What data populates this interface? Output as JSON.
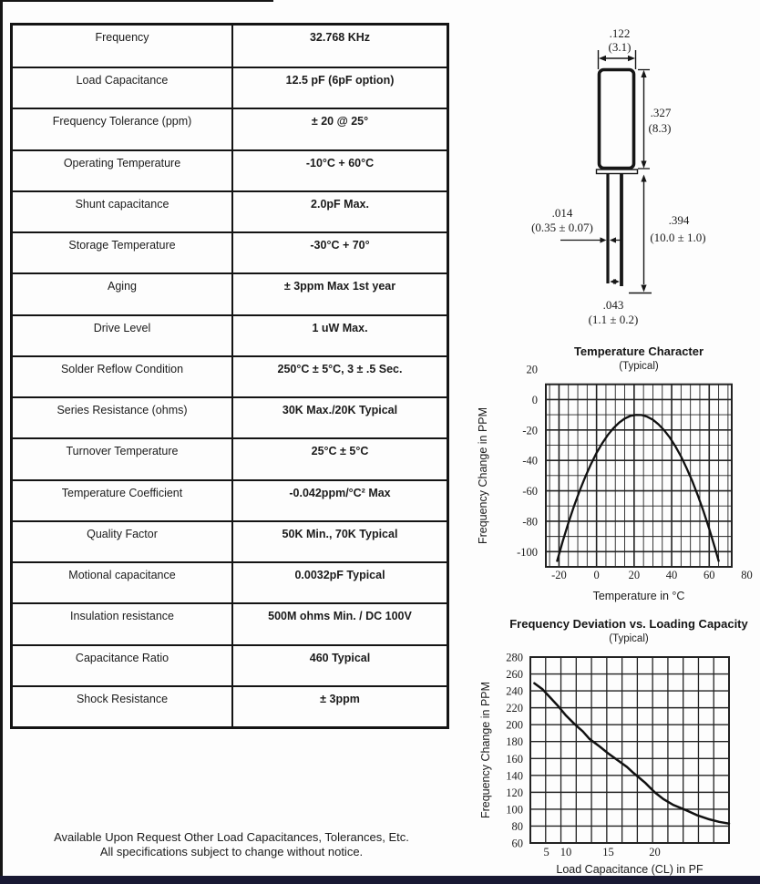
{
  "spec_table": {
    "rows": [
      {
        "param": "Frequency",
        "value": "32.768 KHz"
      },
      {
        "param": "Load Capacitance",
        "value": "12.5 pF  (6pF option)"
      },
      {
        "param": "Frequency Tolerance (ppm)",
        "value": "± 20 @ 25°"
      },
      {
        "param": "Operating Temperature",
        "value": "-10°C + 60°C"
      },
      {
        "param": "Shunt capacitance",
        "value": "2.0pF Max."
      },
      {
        "param": "Storage Temperature",
        "value": "-30°C + 70°"
      },
      {
        "param": "Aging",
        "value": "± 3ppm Max 1st year"
      },
      {
        "param": "Drive Level",
        "value": "1 uW Max."
      },
      {
        "param": "Solder Reflow Condition",
        "value": "250°C ± 5°C, 3 ± .5 Sec."
      },
      {
        "param": "Series Resistance (ohms)",
        "value": "30K Max./20K Typical"
      },
      {
        "param": "Turnover Temperature",
        "value": "25°C ± 5°C"
      },
      {
        "param": "Temperature Coefficient",
        "value": "-0.042ppm/°C² Max"
      },
      {
        "param": "Quality Factor",
        "value": "50K Min., 70K Typical"
      },
      {
        "param": "Motional capacitance",
        "value": "0.0032pF Typical"
      },
      {
        "param": "Insulation resistance",
        "value": "500M ohms Min. / DC 100V"
      },
      {
        "param": "Capacitance Ratio",
        "value": "460 Typical"
      },
      {
        "param": "Shock Resistance",
        "value": "± 3ppm"
      }
    ]
  },
  "footer": {
    "line1": "Available Upon Request  Other Load Capacitances, Tolerances, Etc.",
    "line2": "All specifications subject to change without notice."
  },
  "drawing": {
    "dims": {
      "body_width_in": ".122",
      "body_width_mm": "(3.1)",
      "body_height_in": ".327",
      "body_height_mm": "(8.3)",
      "lead_dia_in": ".014",
      "lead_dia_mm": "(0.35 ± 0.07)",
      "lead_len_in": ".394",
      "lead_len_mm": "(10.0 ± 1.0)",
      "lead_space_in": ".043",
      "lead_space_mm": "(1.1 ± 0.2)"
    }
  },
  "chart_data": [
    {
      "type": "line",
      "title": "Temperature Character",
      "subtitle": "(Typical)",
      "xlabel": "Temperature in °C",
      "ylabel": "Frequency Change in PPM",
      "xlim": [
        -27,
        72
      ],
      "ylim": [
        -110,
        10
      ],
      "x_ticks": [
        -20,
        0,
        20,
        40,
        60,
        80
      ],
      "y_ticks": [
        20,
        0,
        -20,
        -40,
        -60,
        -80,
        -100
      ],
      "grid": {
        "x_minor_step": 5,
        "y_minor_step": 10,
        "on": true
      },
      "legend": "none",
      "series": [
        {
          "name": "frequency-change-vs-temperature",
          "points": [
            [
              -21,
              -106.1
            ],
            [
              -18,
              -93.2
            ],
            [
              -15,
              -81.2
            ],
            [
              -12,
              -70.1
            ],
            [
              -9,
              -60.0
            ],
            [
              -6,
              -50.8
            ],
            [
              -3,
              -42.5
            ],
            [
              0,
              -35.2
            ],
            [
              3,
              -28.8
            ],
            [
              6,
              -23.3
            ],
            [
              9,
              -18.8
            ],
            [
              12,
              -15.2
            ],
            [
              15,
              -12.5
            ],
            [
              18,
              -10.8
            ],
            [
              21,
              -10.1
            ],
            [
              24,
              -10.2
            ],
            [
              27,
              -11.3
            ],
            [
              30,
              -13.3
            ],
            [
              33,
              -16.3
            ],
            [
              36,
              -20.2
            ],
            [
              39,
              -25.0
            ],
            [
              42,
              -30.8
            ],
            [
              45,
              -37.5
            ],
            [
              48,
              -45.2
            ],
            [
              51,
              -53.7
            ],
            [
              54,
              -63.2
            ],
            [
              57,
              -73.7
            ],
            [
              60,
              -85.1
            ],
            [
              63,
              -97.4
            ],
            [
              65,
              -106.1
            ]
          ]
        }
      ]
    },
    {
      "type": "line",
      "title": "Frequency Deviation vs. Loading Capacity",
      "subtitle": "(Typical)",
      "xlabel": "Load Capacitance (CL) in PF",
      "ylabel": "Frequency Change in PPM",
      "ylim": [
        60,
        280
      ],
      "x_ticks": [
        5,
        10,
        15,
        20
      ],
      "y_ticks": [
        280,
        260,
        240,
        220,
        200,
        180,
        160,
        140,
        120,
        100,
        80,
        60
      ],
      "x_axis_anchors": [
        [
          3,
          0
        ],
        [
          5,
          0.081
        ],
        [
          10,
          0.179
        ],
        [
          15,
          0.392
        ],
        [
          20,
          0.626
        ],
        [
          26,
          1.0
        ]
      ],
      "x_grid_columns": 13,
      "grid": {
        "y_step": 20,
        "on": true
      },
      "legend": "none",
      "series": [
        {
          "name": "frequency-deviation-vs-load-capacitance",
          "points": [
            [
              3.5,
              249
            ],
            [
              4.5,
              242
            ],
            [
              6,
              232
            ],
            [
              8,
              222
            ],
            [
              10,
              211
            ],
            [
              11,
              201
            ],
            [
              12,
              192
            ],
            [
              12.8,
              183
            ],
            [
              14,
              174
            ],
            [
              15,
              166
            ],
            [
              16,
              158
            ],
            [
              17,
              150
            ],
            [
              17.7,
              143
            ],
            [
              19,
              131
            ],
            [
              20,
              120
            ],
            [
              20.7,
              112
            ],
            [
              21.5,
              105
            ],
            [
              22.5,
              99
            ],
            [
              23.4,
              93
            ],
            [
              24.4,
              88
            ],
            [
              25.2,
              85
            ],
            [
              26,
              83
            ]
          ]
        }
      ]
    }
  ]
}
